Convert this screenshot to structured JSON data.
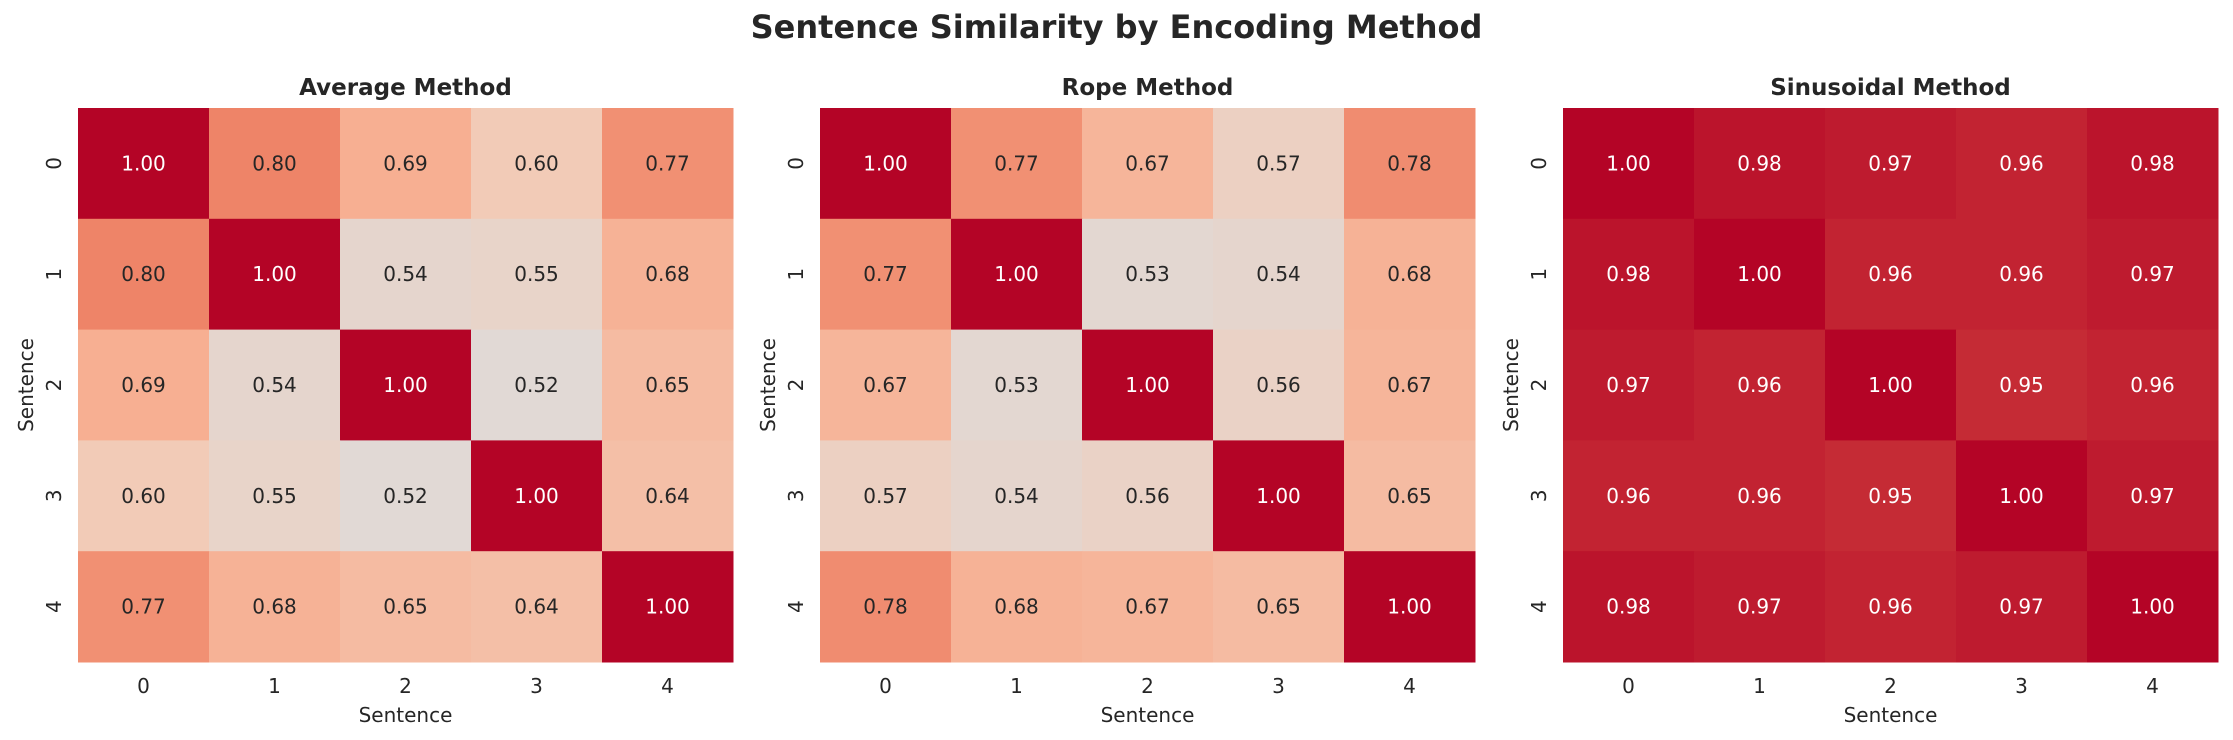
{
  "chart_data": {
    "title": "Sentence Similarity by Encoding Method",
    "type": "heatmap",
    "colormap": "coolwarm",
    "vmin": 0,
    "vmax": 1,
    "annotation_format": "0.00",
    "panels": [
      {
        "title": "Average Method",
        "xlabel": "Sentence",
        "ylabel": "Sentence",
        "x_ticks": [
          "0",
          "1",
          "2",
          "3",
          "4"
        ],
        "y_ticks": [
          "0",
          "1",
          "2",
          "3",
          "4"
        ],
        "values": [
          [
            1.0,
            0.8,
            0.69,
            0.6,
            0.77
          ],
          [
            0.8,
            1.0,
            0.54,
            0.55,
            0.68
          ],
          [
            0.69,
            0.54,
            1.0,
            0.52,
            0.65
          ],
          [
            0.6,
            0.55,
            0.52,
            1.0,
            0.64
          ],
          [
            0.77,
            0.68,
            0.65,
            0.64,
            1.0
          ]
        ]
      },
      {
        "title": "Rope Method",
        "xlabel": "Sentence",
        "ylabel": "Sentence",
        "x_ticks": [
          "0",
          "1",
          "2",
          "3",
          "4"
        ],
        "y_ticks": [
          "0",
          "1",
          "2",
          "3",
          "4"
        ],
        "values": [
          [
            1.0,
            0.77,
            0.67,
            0.57,
            0.78
          ],
          [
            0.77,
            1.0,
            0.53,
            0.54,
            0.68
          ],
          [
            0.67,
            0.53,
            1.0,
            0.56,
            0.67
          ],
          [
            0.57,
            0.54,
            0.56,
            1.0,
            0.65
          ],
          [
            0.78,
            0.68,
            0.67,
            0.65,
            1.0
          ]
        ]
      },
      {
        "title": "Sinusoidal Method",
        "xlabel": "Sentence",
        "ylabel": "Sentence",
        "x_ticks": [
          "0",
          "1",
          "2",
          "3",
          "4"
        ],
        "y_ticks": [
          "0",
          "1",
          "2",
          "3",
          "4"
        ],
        "values": [
          [
            1.0,
            0.98,
            0.97,
            0.96,
            0.98
          ],
          [
            0.98,
            1.0,
            0.96,
            0.96,
            0.97
          ],
          [
            0.97,
            0.96,
            1.0,
            0.95,
            0.96
          ],
          [
            0.96,
            0.96,
            0.95,
            1.0,
            0.97
          ],
          [
            0.98,
            0.97,
            0.96,
            0.97,
            1.0
          ]
        ]
      }
    ]
  }
}
